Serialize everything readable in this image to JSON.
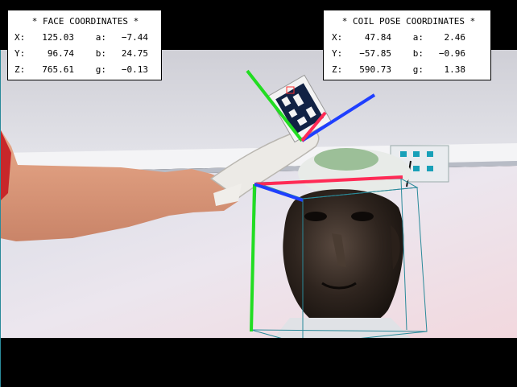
{
  "face_panel": {
    "title": "* FACE COORDINATES *",
    "rows": [
      {
        "label": "X:",
        "value": "125.03",
        "angle_label": "a:",
        "angle_value": "−7.44"
      },
      {
        "label": "Y:",
        "value": "96.74",
        "angle_label": "b:",
        "angle_value": "24.75"
      },
      {
        "label": "Z:",
        "value": "765.61",
        "angle_label": "g:",
        "angle_value": "−0.13"
      }
    ]
  },
  "coil_panel": {
    "title": "* COIL POSE COORDINATES *",
    "rows": [
      {
        "label": "X:",
        "value": "47.84",
        "angle_label": "a:",
        "angle_value": "2.46"
      },
      {
        "label": "Y:",
        "value": "−57.85",
        "angle_label": "b:",
        "angle_value": "−0.96"
      },
      {
        "label": "Z:",
        "value": "590.73",
        "angle_label": "g:",
        "angle_value": "1.38"
      }
    ]
  },
  "colors": {
    "axis_x": "#ff2a55",
    "axis_y": "#1f3fff",
    "axis_z": "#22dd22",
    "bounding_box": "#2a8a9a",
    "marker_accent": "#ff3030"
  }
}
